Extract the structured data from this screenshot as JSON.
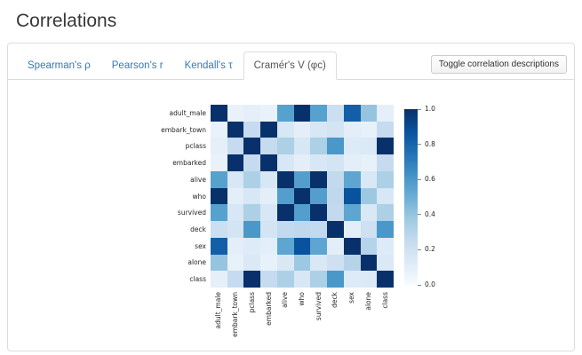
{
  "page": {
    "title": "Correlations"
  },
  "tabs": [
    {
      "name": "tab-spearmans-rho",
      "label": "Spearman's ρ",
      "active": false
    },
    {
      "name": "tab-pearsons-r",
      "label": "Pearson's r",
      "active": false
    },
    {
      "name": "tab-kendalls-tau",
      "label": "Kendall's τ",
      "active": false
    },
    {
      "name": "tab-cramers-v",
      "label": "Cramér's V (φc)",
      "active": true
    }
  ],
  "toolbar": {
    "toggle_button_label": "Toggle correlation descriptions"
  },
  "chart_data": {
    "type": "heatmap",
    "categories": [
      "adult_male",
      "embark_town",
      "pclass",
      "embarked",
      "alive",
      "who",
      "survived",
      "deck",
      "sex",
      "alone",
      "class"
    ],
    "matrix": [
      [
        1.0,
        0.07,
        0.09,
        0.07,
        0.56,
        1.0,
        0.56,
        0.22,
        0.82,
        0.4,
        0.09
      ],
      [
        0.07,
        1.0,
        0.25,
        1.0,
        0.16,
        0.1,
        0.16,
        0.18,
        0.1,
        0.08,
        0.25
      ],
      [
        0.09,
        0.25,
        1.0,
        0.25,
        0.33,
        0.16,
        0.33,
        0.6,
        0.13,
        0.14,
        1.0
      ],
      [
        0.07,
        1.0,
        0.25,
        1.0,
        0.16,
        0.1,
        0.16,
        0.18,
        0.1,
        0.08,
        0.25
      ],
      [
        0.56,
        0.16,
        0.33,
        0.16,
        1.0,
        0.57,
        1.0,
        0.26,
        0.54,
        0.15,
        0.33
      ],
      [
        1.0,
        0.1,
        0.16,
        0.1,
        0.57,
        1.0,
        0.57,
        0.27,
        0.87,
        0.38,
        0.16
      ],
      [
        0.56,
        0.16,
        0.33,
        0.16,
        1.0,
        0.57,
        1.0,
        0.26,
        0.54,
        0.15,
        0.33
      ],
      [
        0.22,
        0.18,
        0.6,
        0.18,
        0.26,
        0.27,
        0.26,
        1.0,
        0.1,
        0.21,
        0.6
      ],
      [
        0.82,
        0.1,
        0.13,
        0.1,
        0.54,
        0.87,
        0.54,
        0.1,
        1.0,
        0.3,
        0.13
      ],
      [
        0.4,
        0.08,
        0.14,
        0.08,
        0.15,
        0.38,
        0.15,
        0.21,
        0.3,
        1.0,
        0.14
      ],
      [
        0.09,
        0.25,
        1.0,
        0.25,
        0.33,
        0.16,
        0.33,
        0.6,
        0.13,
        0.14,
        1.0
      ]
    ],
    "colormap": "Blues",
    "value_range": [
      0.0,
      1.0
    ],
    "colorbar_ticks": [
      {
        "label": "1.0",
        "value": 1.0
      },
      {
        "label": "0.8",
        "value": 0.8
      },
      {
        "label": "0.6",
        "value": 0.6
      },
      {
        "label": "0.4",
        "value": 0.4
      },
      {
        "label": "0.2",
        "value": 0.2
      },
      {
        "label": "0.0",
        "value": 0.0
      }
    ],
    "colors": {
      "max": "#08306b",
      "min": "#f7fbff"
    },
    "legend_position": "right",
    "grid": false
  }
}
